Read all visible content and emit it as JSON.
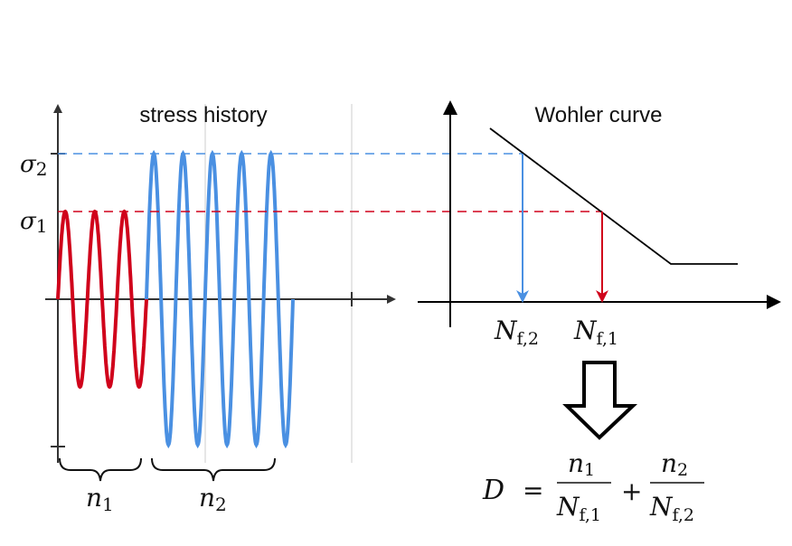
{
  "left_panel": {
    "title": "stress history",
    "sigma2": {
      "base": "σ",
      "sub": "2"
    },
    "sigma1": {
      "base": "σ",
      "sub": "1"
    },
    "n1": {
      "base": "n",
      "sub": "1"
    },
    "n2": {
      "base": "n",
      "sub": "2"
    },
    "block1_cycles": 3,
    "block2_cycles": 5
  },
  "right_panel": {
    "title": "Wohler curve",
    "nf2": {
      "base": "N",
      "sub": "f,2"
    },
    "nf1": {
      "base": "N",
      "sub": "f,1"
    }
  },
  "formula": {
    "lhs": "D",
    "eq": "=",
    "plus": "+",
    "num1": {
      "base": "n",
      "sub": "1"
    },
    "den1": {
      "base": "N",
      "sub": "f,1"
    },
    "num2": {
      "base": "n",
      "sub": "2"
    },
    "den2": {
      "base": "N",
      "sub": "f,2"
    }
  },
  "colors": {
    "sigma1": "#d0021b",
    "sigma2": "#4a90e2",
    "axis": "#333333"
  }
}
